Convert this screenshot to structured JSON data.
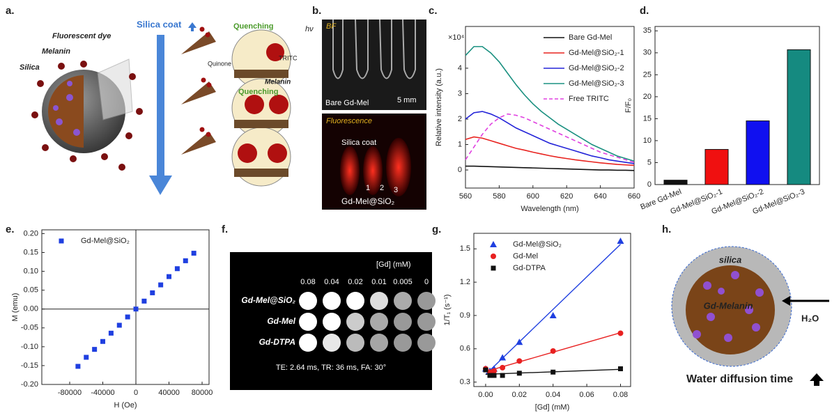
{
  "panel_labels": [
    "a.",
    "b.",
    "c.",
    "d.",
    "e.",
    "f.",
    "g.",
    "h."
  ],
  "diagram_a": {
    "fluorescent_dye": "Fluorescent dye",
    "melanin": "Melanin",
    "silica": "Silica",
    "silica_coat": "Silica coat",
    "quenching_1": "Quenching",
    "light": "hν",
    "tritc": "TRITC",
    "quinone": "Quinone",
    "melanin_2": "Melanin",
    "quenching_2": "Quenching"
  },
  "photo_b": {
    "top_label": "BF",
    "bottom_label": "Fluorescence",
    "bare": "Bare Gd-Mel",
    "scale": "5 mm",
    "coat": "Silica coat",
    "tubes": [
      "1",
      "2",
      "3"
    ],
    "sample": "Gd-Mel@SiO₂"
  },
  "chart_data": [
    {
      "type": "line",
      "multiplier": "×10⁴",
      "xlabel": "Wavelength (nm)",
      "ylabel": "Relative intensity (a.u.)",
      "legend": "upper right",
      "x": [
        560,
        565,
        570,
        575,
        580,
        585,
        590,
        595,
        600,
        605,
        610,
        615,
        620,
        625,
        630,
        635,
        640,
        645,
        650,
        655,
        660
      ],
      "xlim": [
        560,
        660
      ],
      "xticks": [
        560,
        580,
        600,
        620,
        640,
        660
      ],
      "ylim": [
        -0.71,
        5.64
      ],
      "yticks": [
        0,
        1,
        2,
        3,
        4
      ],
      "series": [
        {
          "name": "Bare Gd-Mel",
          "color": "#111111",
          "values": [
            0.15,
            0.15,
            0.14,
            0.13,
            0.12,
            0.11,
            0.1,
            0.09,
            0.08,
            0.07,
            0.06,
            0.05,
            0.04,
            0.03,
            0.02,
            0.01,
            0.0,
            0.0,
            -0.01,
            -0.01,
            -0.02
          ]
        },
        {
          "name": "Gd-Mel@SiO₂-1",
          "color": "#e8231f",
          "values": [
            1.2,
            1.3,
            1.25,
            1.15,
            1.05,
            0.95,
            0.85,
            0.78,
            0.7,
            0.63,
            0.56,
            0.5,
            0.45,
            0.4,
            0.36,
            0.32,
            0.28,
            0.25,
            0.22,
            0.2,
            0.18
          ]
        },
        {
          "name": "Gd-Mel@SiO₂-2",
          "color": "#2323d8",
          "values": [
            2.0,
            2.25,
            2.3,
            2.2,
            2.05,
            1.85,
            1.65,
            1.5,
            1.35,
            1.2,
            1.05,
            0.95,
            0.85,
            0.75,
            0.65,
            0.55,
            0.48,
            0.4,
            0.35,
            0.3,
            0.25
          ]
        },
        {
          "name": "Gd-Mel@SiO₂-3",
          "color": "#1a9080",
          "values": [
            4.5,
            4.85,
            4.85,
            4.6,
            4.25,
            3.8,
            3.35,
            2.95,
            2.6,
            2.3,
            2.05,
            1.8,
            1.6,
            1.4,
            1.2,
            1.0,
            0.85,
            0.7,
            0.55,
            0.45,
            0.35
          ]
        },
        {
          "name": "Free TRITC",
          "color": "#e040e0",
          "linestyle": "dashed",
          "values": [
            0.4,
            0.9,
            1.4,
            1.8,
            2.05,
            2.2,
            2.15,
            2.05,
            1.9,
            1.75,
            1.6,
            1.45,
            1.3,
            1.15,
            1.0,
            0.85,
            0.7,
            0.6,
            0.5,
            0.4,
            0.3
          ]
        }
      ]
    },
    {
      "type": "bar",
      "ylabel": "F/F₀",
      "categories": [
        "Bare Gd-Mel",
        "Gd-Mel@SiO₂-1",
        "Gd-Mel@SiO₂-2",
        "Gd-Mel@SiO₂-3"
      ],
      "values": [
        1,
        8,
        14.5,
        30.7
      ],
      "colors": [
        "#111111",
        "#f01010",
        "#1010f0",
        "#158a80"
      ],
      "ylim": [
        0,
        36
      ],
      "yticks": [
        0,
        5,
        10,
        15,
        20,
        25,
        30,
        35
      ]
    },
    {
      "type": "scatter",
      "xlabel": "H (Oe)",
      "ylabel": "M (emu)",
      "legend": "upper left",
      "origin_axes": true,
      "x": [
        -70000,
        -60000,
        -50000,
        -40000,
        -30000,
        -20000,
        -10000,
        0,
        10000,
        20000,
        30000,
        40000,
        50000,
        60000,
        70000
      ],
      "xlim": [
        -113700,
        88400
      ],
      "xticks": [
        -80000,
        -40000,
        0,
        40000,
        80000
      ],
      "ylim": [
        -0.2,
        0.21
      ],
      "yticks": [
        {
          "value": 0.2,
          "label": "0.20"
        },
        0.15,
        {
          "value": 0.1,
          "label": "0.10"
        },
        0.05,
        {
          "value": 0,
          "label": "0.00"
        },
        -0.05,
        {
          "value": -0.1,
          "label": "-0.10"
        },
        -0.15,
        {
          "value": -0.2,
          "label": "-0.20"
        }
      ],
      "series": [
        {
          "name": "Gd-Mel@SiO₂",
          "color": "#1f3fe0",
          "marker": "square",
          "values": [
            -0.152,
            -0.128,
            -0.107,
            -0.086,
            -0.064,
            -0.043,
            -0.021,
            0,
            0.021,
            0.043,
            0.064,
            0.086,
            0.107,
            0.128,
            0.148
          ]
        }
      ]
    },
    {
      "type": "scatter",
      "xlabel": "[Gd] (mM)",
      "ylabel": "1/T₁ (s⁻¹)",
      "legend": "upper left",
      "fit": true,
      "x": [
        0,
        0.0025,
        0.005,
        0.01,
        0.02,
        0.04,
        0.08
      ],
      "xlim": [
        -0.007,
        0.086
      ],
      "xticks": [
        {
          "value": 0,
          "label": "0.00"
        },
        {
          "value": 0.02,
          "label": "0.02"
        },
        {
          "value": 0.04,
          "label": "0.04"
        },
        {
          "value": 0.06,
          "label": "0.06"
        },
        {
          "value": 0.08,
          "label": "0.08"
        }
      ],
      "ylim": [
        0.26,
        1.64
      ],
      "yticks": [
        0.3,
        0.6,
        0.9,
        1.2,
        1.5
      ],
      "series": [
        {
          "name": "Gd-Mel@SiO₂",
          "color": "#1f3fe0",
          "marker": "triangle",
          "values": [
            0.42,
            0.4,
            0.42,
            0.52,
            0.66,
            0.9,
            1.57
          ]
        },
        {
          "name": "Gd-Mel",
          "color": "#e82020",
          "marker": "circle",
          "values": [
            0.42,
            0.39,
            0.4,
            0.43,
            0.49,
            0.58,
            0.74
          ]
        },
        {
          "name": "Gd-DTPA",
          "color": "#111111",
          "marker": "square",
          "values": [
            0.41,
            0.36,
            0.36,
            0.36,
            0.38,
            0.39,
            0.42
          ]
        }
      ]
    }
  ],
  "mri_f": {
    "unit": "[Gd] (mM)",
    "concentrations": [
      "0.08",
      "0.04",
      "0.02",
      "0.01",
      "0.005",
      "0"
    ],
    "rows": [
      "Gd-Mel@SiO₂",
      "Gd-Mel",
      "Gd-DTPA"
    ],
    "params": "TE: 2.64 ms, TR: 36 ms, FA: 30°"
  },
  "diagram_h": {
    "shell": "silica",
    "core": "Gd-Melanin",
    "water": "H₂O",
    "caption": "Water diffusion time"
  }
}
